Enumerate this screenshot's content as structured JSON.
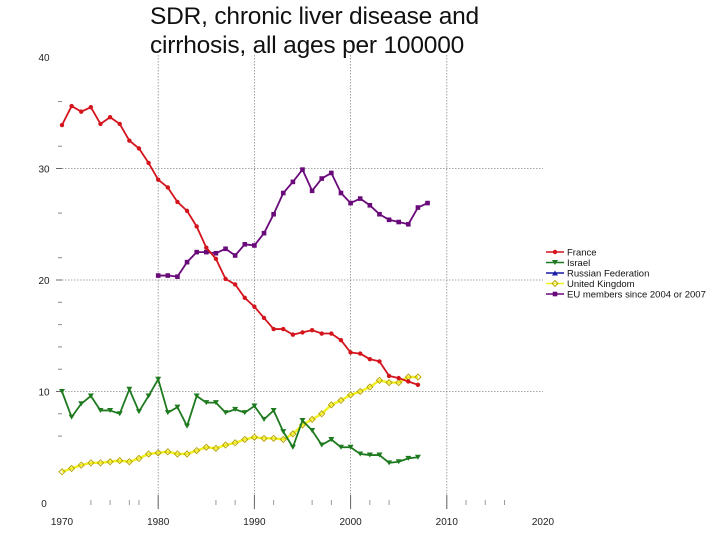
{
  "chart_data": {
    "type": "line",
    "title": "SDR, chronic liver disease and cirrhosis, all ages per 100000",
    "xlabel": "",
    "ylabel": "",
    "xlim": [
      1970,
      2020
    ],
    "ylim": [
      0,
      40
    ],
    "x_ticks": [
      1970,
      1980,
      1990,
      2000,
      2010,
      2020
    ],
    "y_ticks": [
      0,
      10,
      20,
      30,
      40
    ],
    "y_minor_ticks": [
      6,
      8,
      12,
      14,
      16,
      18,
      22,
      26,
      32,
      36
    ],
    "grid": true,
    "legend_position": "right",
    "series": [
      {
        "name": "France",
        "color": "#d4141c",
        "marker": "circle",
        "x": [
          1970,
          1971,
          1972,
          1973,
          1974,
          1975,
          1976,
          1977,
          1978,
          1979,
          1980,
          1981,
          1982,
          1983,
          1984,
          1985,
          1986,
          1987,
          1988,
          1989,
          1990,
          1991,
          1992,
          1993,
          1994,
          1995,
          1996,
          1997,
          1998,
          1999,
          2000,
          2001,
          2002,
          2003,
          2004,
          2005,
          2006,
          2007
        ],
        "values": [
          33.9,
          35.6,
          35.1,
          35.5,
          34.0,
          34.6,
          34.0,
          32.5,
          31.8,
          30.5,
          29.0,
          28.3,
          27.0,
          26.2,
          24.8,
          22.9,
          21.9,
          20.1,
          19.6,
          18.4,
          17.6,
          16.6,
          15.6,
          15.6,
          15.1,
          15.3,
          15.5,
          15.2,
          15.2,
          14.6,
          13.5,
          13.4,
          12.9,
          12.7,
          11.4,
          11.2,
          10.9,
          10.6
        ]
      },
      {
        "name": "Israel",
        "color": "#1e7a1e",
        "marker": "triangle-down",
        "x": [
          1970,
          1971,
          1972,
          1973,
          1974,
          1975,
          1976,
          1977,
          1978,
          1979,
          1980,
          1981,
          1982,
          1983,
          1984,
          1985,
          1986,
          1987,
          1988,
          1989,
          1990,
          1991,
          1992,
          1993,
          1994,
          1995,
          1996,
          1997,
          1998,
          1999,
          2000,
          2001,
          2002,
          2003,
          2004,
          2005,
          2006,
          2007
        ],
        "values": [
          10.0,
          7.7,
          8.9,
          9.6,
          8.3,
          8.3,
          8.0,
          10.2,
          8.2,
          9.6,
          11.1,
          8.1,
          8.6,
          6.9,
          9.6,
          9.0,
          9.0,
          8.1,
          8.4,
          8.1,
          8.7,
          7.5,
          8.3,
          6.4,
          5.0,
          7.4,
          6.5,
          5.2,
          5.7,
          5.0,
          5.0,
          4.4,
          4.3,
          4.3,
          3.6,
          3.7,
          4.0,
          4.1
        ]
      },
      {
        "name": "Russian Federation",
        "color": "#1a1aa8",
        "marker": "triangle-up",
        "x": [],
        "values": []
      },
      {
        "name": "United Kingdom",
        "color": "#f0f020",
        "marker": "diamond",
        "x": [
          1970,
          1971,
          1972,
          1973,
          1974,
          1975,
          1976,
          1977,
          1978,
          1979,
          1980,
          1981,
          1982,
          1983,
          1984,
          1985,
          1986,
          1987,
          1988,
          1989,
          1990,
          1991,
          1992,
          1993,
          1994,
          1995,
          1996,
          1997,
          1998,
          1999,
          2000,
          2001,
          2002,
          2003,
          2004,
          2005,
          2006,
          2007
        ],
        "values": [
          2.8,
          3.1,
          3.4,
          3.6,
          3.6,
          3.7,
          3.8,
          3.7,
          4.0,
          4.4,
          4.5,
          4.6,
          4.4,
          4.4,
          4.7,
          5.0,
          4.9,
          5.2,
          5.4,
          5.7,
          5.9,
          5.8,
          5.8,
          5.7,
          6.2,
          7.0,
          7.5,
          8.0,
          8.8,
          9.2,
          9.7,
          10.0,
          10.4,
          11.0,
          10.8,
          10.8,
          11.3,
          11.3
        ]
      },
      {
        "name": "EU members since 2004 or 2007",
        "color": "#6a0a7a",
        "marker": "square",
        "x": [
          1980,
          1981,
          1982,
          1983,
          1984,
          1985,
          1986,
          1987,
          1988,
          1989,
          1990,
          1991,
          1992,
          1993,
          1994,
          1995,
          1996,
          1997,
          1998,
          1999,
          2000,
          2001,
          2002,
          2003,
          2004,
          2005,
          2006,
          2007,
          2008
        ],
        "values": [
          20.4,
          20.4,
          20.3,
          21.6,
          22.5,
          22.5,
          22.4,
          22.8,
          22.2,
          23.2,
          23.1,
          24.2,
          25.9,
          27.8,
          28.8,
          29.9,
          28.0,
          29.1,
          29.6,
          27.8,
          26.9,
          27.3,
          26.7,
          25.9,
          25.4,
          25.2,
          25.0,
          26.5,
          26.9
        ]
      }
    ]
  }
}
